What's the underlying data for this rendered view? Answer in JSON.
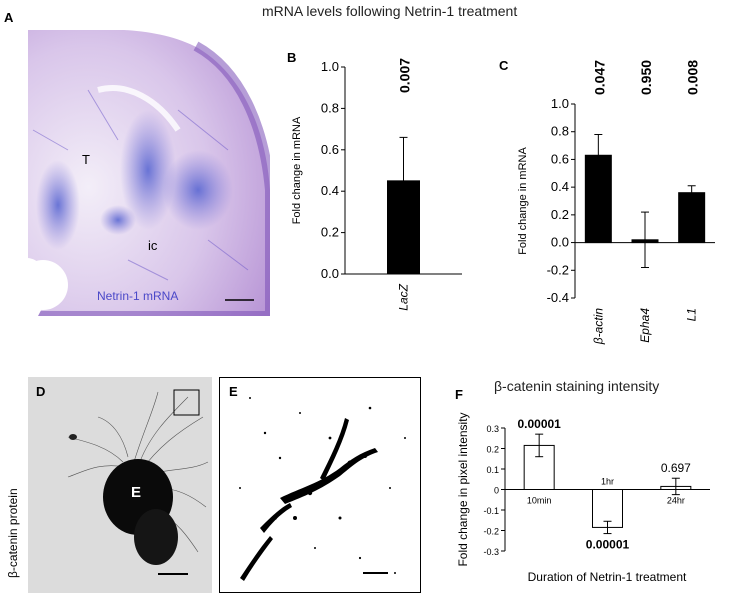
{
  "top_title": "mRNA levels following Netrin-1 treatment",
  "bottom_title": "β-catenin staining intensity",
  "panels": {
    "A": {
      "letter": "A",
      "labels": {
        "t": "T",
        "ic": "ic",
        "caption": "Netrin-1 mRNA"
      }
    },
    "D": {
      "letter": "D",
      "side_label": "β-catenin protein",
      "center_label": "E"
    },
    "E": {
      "letter": "E"
    }
  },
  "chart_data": [
    {
      "id": "B",
      "letter": "B",
      "type": "bar",
      "categories": [
        "LacZ"
      ],
      "values": [
        0.45
      ],
      "errors": [
        0.21
      ],
      "p_values": [
        "0.007"
      ],
      "ylabel": "Fold change in mRNA",
      "xlabel": "",
      "ylim": [
        0,
        1.0
      ],
      "yticks": [
        "0.0",
        "0.2",
        "0.4",
        "0.6",
        "0.8",
        "1.0"
      ],
      "grid": false,
      "bar_color": "#000000"
    },
    {
      "id": "C",
      "letter": "C",
      "type": "bar",
      "categories": [
        "β-actin",
        "Epha4",
        "L1"
      ],
      "values": [
        0.63,
        0.02,
        0.36
      ],
      "errors": [
        0.15,
        0.2,
        0.05
      ],
      "p_values": [
        "0.047",
        "0.950",
        "0.008"
      ],
      "ylabel": "Fold change in mRNA",
      "xlabel": "",
      "ylim": [
        -0.4,
        1.0
      ],
      "yticks": [
        "-0.4",
        "-0.2",
        "0.0",
        "0.2",
        "0.4",
        "0.6",
        "0.8",
        "1.0"
      ],
      "grid": false,
      "bar_color": "#000000"
    },
    {
      "id": "F",
      "letter": "F",
      "type": "bar",
      "categories": [
        "10min",
        "1hr",
        "24hr"
      ],
      "values": [
        0.215,
        -0.185,
        0.015
      ],
      "errors": [
        0.055,
        0.03,
        0.04
      ],
      "p_values": [
        "0.00001",
        "0.00001",
        "0.697"
      ],
      "ylabel": "Fold change in pixel intensity",
      "xlabel": "Duration of Netrin-1 treatment",
      "ylim": [
        -0.3,
        0.3
      ],
      "yticks": [
        "-0.3",
        "-0.2",
        "-0.1",
        "0",
        "0.1",
        "0.2",
        "0.3"
      ],
      "grid": false,
      "bar_color": "#ffffff"
    }
  ]
}
